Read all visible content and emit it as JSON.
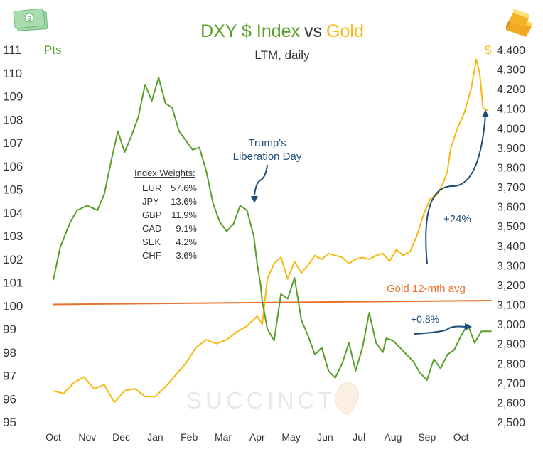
{
  "colors": {
    "dxy": "#5a9e2a",
    "gold": "#f5b90f",
    "avg": "#e8702a",
    "annotation": "#1f4e79",
    "text": "#333333",
    "watermark": "#e6e6e6"
  },
  "chart_data": {
    "type": "line",
    "title": {
      "part1": "DXY $ Index",
      "part2": "vs",
      "part3": "Gold"
    },
    "subtitle": "LTM, daily",
    "left_axis": {
      "unit": "Pts",
      "range": [
        95,
        111
      ],
      "ticks": [
        "111",
        "110",
        "109",
        "108",
        "107",
        "106",
        "105",
        "104",
        "103",
        "102",
        "101",
        "100",
        "99",
        "98",
        "97",
        "96",
        "95"
      ]
    },
    "right_axis": {
      "unit": "$",
      "range": [
        2500,
        4400
      ],
      "ticks": [
        "4,400",
        "4,300",
        "4,200",
        "4,100",
        "4,000",
        "3,900",
        "3,800",
        "3,700",
        "3,600",
        "3,500",
        "3,400",
        "3,300",
        "3,200",
        "3,100",
        "3,000",
        "2,900",
        "2,800",
        "2,700",
        "2,600",
        "2,500"
      ]
    },
    "x_ticks": [
      "Oct",
      "Nov",
      "Dec",
      "Jan",
      "Feb",
      "Mar",
      "Apr",
      "May",
      "Jun",
      "Jul",
      "Aug",
      "Sep",
      "Oct"
    ],
    "series": [
      {
        "name": "DXY $ Index",
        "axis": "left",
        "x": [
          0,
          0.2,
          0.5,
          0.7,
          1.0,
          1.3,
          1.5,
          1.7,
          1.9,
          2.1,
          2.3,
          2.5,
          2.7,
          2.9,
          3.1,
          3.3,
          3.5,
          3.7,
          3.9,
          4.1,
          4.3,
          4.5,
          4.7,
          4.9,
          5.1,
          5.3,
          5.5,
          5.7,
          5.9,
          6.0,
          6.1,
          6.15,
          6.3,
          6.5,
          6.7,
          6.9,
          7.1,
          7.3,
          7.5,
          7.7,
          7.9,
          8.1,
          8.3,
          8.5,
          8.7,
          8.9,
          9.1,
          9.3,
          9.5,
          9.7,
          9.8,
          10.0,
          10.2,
          10.4,
          10.6,
          10.8,
          11.0,
          11.2,
          11.4,
          11.6,
          11.8,
          12.0,
          12.2,
          12.4,
          12.6,
          12.9
        ],
        "values": [
          101.1,
          102.5,
          103.6,
          104.1,
          104.3,
          104.1,
          104.8,
          106.2,
          107.5,
          106.6,
          107.3,
          108.1,
          109.5,
          108.8,
          109.8,
          108.7,
          108.5,
          107.5,
          107.1,
          106.7,
          106.8,
          105.8,
          104.4,
          103.6,
          103.2,
          103.5,
          104.3,
          104.1,
          103.0,
          101.8,
          100.9,
          100.2,
          99.0,
          98.5,
          100.5,
          100.3,
          101.2,
          99.4,
          98.7,
          97.9,
          98.2,
          97.2,
          96.9,
          97.5,
          98.4,
          97.2,
          98.2,
          99.7,
          98.4,
          98.0,
          98.6,
          98.5,
          98.2,
          97.9,
          97.6,
          97.1,
          96.8,
          97.7,
          97.3,
          97.9,
          98.1,
          98.7,
          99.2,
          98.4,
          98.9,
          98.9
        ]
      },
      {
        "name": "Gold",
        "axis": "right",
        "x": [
          0,
          0.3,
          0.6,
          0.9,
          1.2,
          1.5,
          1.8,
          2.1,
          2.4,
          2.7,
          3.0,
          3.3,
          3.6,
          3.9,
          4.2,
          4.5,
          4.8,
          5.1,
          5.4,
          5.7,
          6.0,
          6.15,
          6.3,
          6.5,
          6.7,
          6.9,
          7.1,
          7.3,
          7.5,
          7.7,
          7.9,
          8.1,
          8.3,
          8.5,
          8.7,
          8.9,
          9.1,
          9.3,
          9.5,
          9.7,
          9.9,
          10.1,
          10.3,
          10.5,
          10.7,
          10.9,
          11.1,
          11.3,
          11.5,
          11.6,
          11.7,
          11.9,
          12.1,
          12.3,
          12.45,
          12.55,
          12.65,
          12.8
        ],
        "values": [
          2660,
          2645,
          2700,
          2730,
          2670,
          2690,
          2600,
          2660,
          2670,
          2630,
          2630,
          2680,
          2740,
          2800,
          2880,
          2920,
          2900,
          2920,
          2960,
          2990,
          3040,
          3000,
          3230,
          3310,
          3340,
          3230,
          3320,
          3260,
          3300,
          3350,
          3330,
          3360,
          3350,
          3340,
          3310,
          3330,
          3340,
          3330,
          3350,
          3360,
          3320,
          3380,
          3350,
          3370,
          3450,
          3560,
          3640,
          3660,
          3730,
          3780,
          3900,
          4000,
          4080,
          4200,
          4350,
          4280,
          4100,
          4090
        ]
      },
      {
        "name": "Gold 12-mth avg",
        "axis": "right",
        "x": [
          0,
          12.9
        ],
        "values": [
          3100,
          3120
        ]
      }
    ],
    "annotations": {
      "event_line1": "Trump's",
      "event_line2": "Liberation Day",
      "avg_label": "Gold 12-mth avg",
      "gold_change": "+24%",
      "dxy_change": "+0.8%"
    },
    "weights": {
      "title": "Index Weights:",
      "items": [
        {
          "ccy": "EUR",
          "pct": "57.6%"
        },
        {
          "ccy": "JPY",
          "pct": "13.6%"
        },
        {
          "ccy": "GBP",
          "pct": "11.9%"
        },
        {
          "ccy": "CAD",
          "pct": "9.1%"
        },
        {
          "ccy": "SEK",
          "pct": "4.2%"
        },
        {
          "ccy": "CHF",
          "pct": "3.6%"
        }
      ]
    }
  },
  "watermark": "SUCCINCT",
  "icons": {
    "left": "dollar-bills-icon",
    "right": "gold-bars-icon"
  }
}
